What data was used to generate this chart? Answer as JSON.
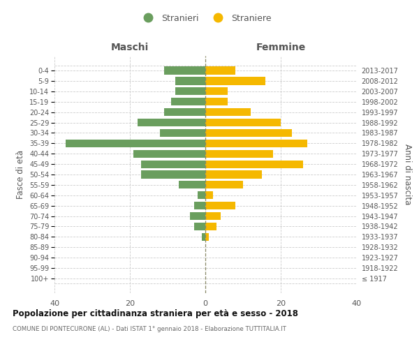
{
  "age_groups": [
    "100+",
    "95-99",
    "90-94",
    "85-89",
    "80-84",
    "75-79",
    "70-74",
    "65-69",
    "60-64",
    "55-59",
    "50-54",
    "45-49",
    "40-44",
    "35-39",
    "30-34",
    "25-29",
    "20-24",
    "15-19",
    "10-14",
    "5-9",
    "0-4"
  ],
  "birth_years": [
    "≤ 1917",
    "1918-1922",
    "1923-1927",
    "1928-1932",
    "1933-1937",
    "1938-1942",
    "1943-1947",
    "1948-1952",
    "1953-1957",
    "1958-1962",
    "1963-1967",
    "1968-1972",
    "1973-1977",
    "1978-1982",
    "1983-1987",
    "1988-1992",
    "1993-1997",
    "1998-2002",
    "2003-2007",
    "2008-2012",
    "2013-2017"
  ],
  "maschi": [
    0,
    0,
    0,
    0,
    1,
    3,
    4,
    3,
    2,
    7,
    17,
    17,
    19,
    37,
    12,
    18,
    11,
    9,
    8,
    8,
    11
  ],
  "femmine": [
    0,
    0,
    0,
    0,
    1,
    3,
    4,
    8,
    2,
    10,
    15,
    26,
    18,
    27,
    23,
    20,
    12,
    6,
    6,
    16,
    8
  ],
  "color_maschi": "#6a9e5e",
  "color_femmine": "#f5b800",
  "title1": "Popolazione per cittadinanza straniera per età e sesso - 2018",
  "title2": "COMUNE DI PONTECURONE (AL) - Dati ISTAT 1° gennaio 2018 - Elaborazione TUTTITALIA.IT",
  "ylabel_left": "Fasce di età",
  "ylabel_right": "Anni di nascita",
  "label_maschi": "Stranieri",
  "label_femmine": "Straniere",
  "header_maschi": "Maschi",
  "header_femmine": "Femmine",
  "xlim": 40,
  "bg_color": "#ffffff",
  "grid_color": "#cccccc",
  "center_line_color": "#888866",
  "text_color": "#555555",
  "title1_color": "#111111",
  "title2_color": "#666666"
}
